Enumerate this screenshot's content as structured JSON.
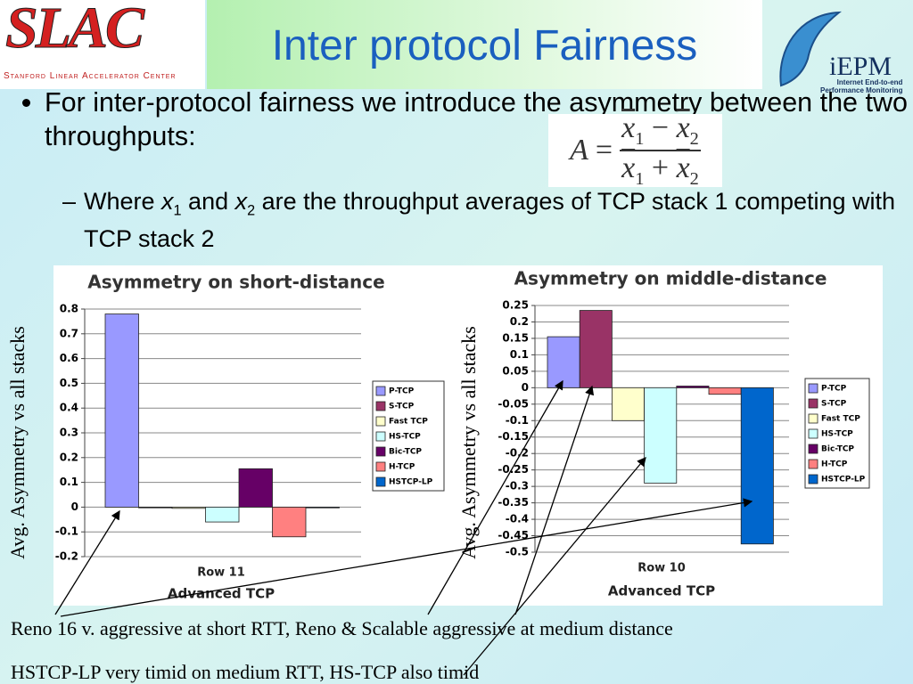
{
  "logo_left": {
    "name": "SLAC",
    "tagline": "Stanford Linear Accelerator Center"
  },
  "logo_right": {
    "name": "iEPM",
    "tagline": [
      "Internet End-to-end",
      "Performance Monitoring"
    ]
  },
  "title": "Inter protocol Fairness",
  "bullet": "For inter-protocol fairness we introduce the asymmetry between the two throughputs:",
  "formula": {
    "lhs": "A",
    "equals": "=",
    "numerator": {
      "a": "x",
      "a_sub": "1",
      "op": "−",
      "b": "x",
      "b_sub": "2"
    },
    "denominator": {
      "a": "x",
      "a_sub": "1",
      "op": "+",
      "b": "x",
      "b_sub": "2"
    }
  },
  "sub_bullet": [
    "Where ",
    "x",
    "1",
    " and ",
    "x",
    "2",
    " are the throughput averages of TCP stack 1 competing with TCP stack 2"
  ],
  "chart_data": [
    {
      "type": "bar",
      "title": "Asymmetry on short-distance",
      "y_label": "Avg. Asymmetry vs all stacks",
      "x_label": "Advanced TCP",
      "categories": [
        "Row 11"
      ],
      "series": [
        {
          "name": "P-TCP",
          "color": "#9999ff",
          "values": [
            0.78
          ]
        },
        {
          "name": "S-TCP",
          "color": "#993366",
          "values": [
            0
          ]
        },
        {
          "name": "Fast TCP",
          "color": "#ffffcc",
          "values": [
            -0.005
          ]
        },
        {
          "name": "HS-TCP",
          "color": "#ccffff",
          "values": [
            -0.06
          ]
        },
        {
          "name": "Bic-TCP",
          "color": "#660066",
          "values": [
            0.155
          ]
        },
        {
          "name": "H-TCP",
          "color": "#ff8080",
          "values": [
            -0.12
          ]
        },
        {
          "name": "HSTCP-LP",
          "color": "#0066cc",
          "values": [
            -0.003
          ]
        }
      ],
      "ylim": [
        -0.2,
        0.8
      ],
      "yticks": [
        -0.2,
        -0.1,
        0,
        0.1,
        0.2,
        0.3,
        0.4,
        0.5,
        0.6,
        0.7,
        0.8
      ],
      "grid": true,
      "legend": "right"
    },
    {
      "type": "bar",
      "title": "Asymmetry on middle-distance",
      "y_label": "Avg. Asymmetry vs all stacks",
      "x_label": "Advanced TCP",
      "categories": [
        "Row 10"
      ],
      "series": [
        {
          "name": "P-TCP",
          "color": "#9999ff",
          "values": [
            0.155
          ]
        },
        {
          "name": "S-TCP",
          "color": "#993366",
          "values": [
            0.235
          ]
        },
        {
          "name": "Fast TCP",
          "color": "#ffffcc",
          "values": [
            -0.1
          ]
        },
        {
          "name": "HS-TCP",
          "color": "#ccffff",
          "values": [
            -0.29
          ]
        },
        {
          "name": "Bic-TCP",
          "color": "#660066",
          "values": [
            0.005
          ]
        },
        {
          "name": "H-TCP",
          "color": "#ff8080",
          "values": [
            -0.02
          ]
        },
        {
          "name": "HSTCP-LP",
          "color": "#0066cc",
          "values": [
            -0.475
          ]
        }
      ],
      "ylim": [
        -0.5,
        0.25
      ],
      "yticks": [
        -0.5,
        -0.45,
        -0.4,
        -0.35,
        -0.3,
        -0.25,
        -0.2,
        -0.15,
        -0.1,
        -0.05,
        0,
        0.05,
        0.1,
        0.15,
        0.2,
        0.25
      ],
      "grid": true,
      "legend": "right"
    }
  ],
  "notes": [
    "Reno 16 v. aggressive at short RTT, Reno & Scalable aggressive at medium distance",
    "HSTCP-LP very timid on medium RTT, HS-TCP also timid"
  ]
}
